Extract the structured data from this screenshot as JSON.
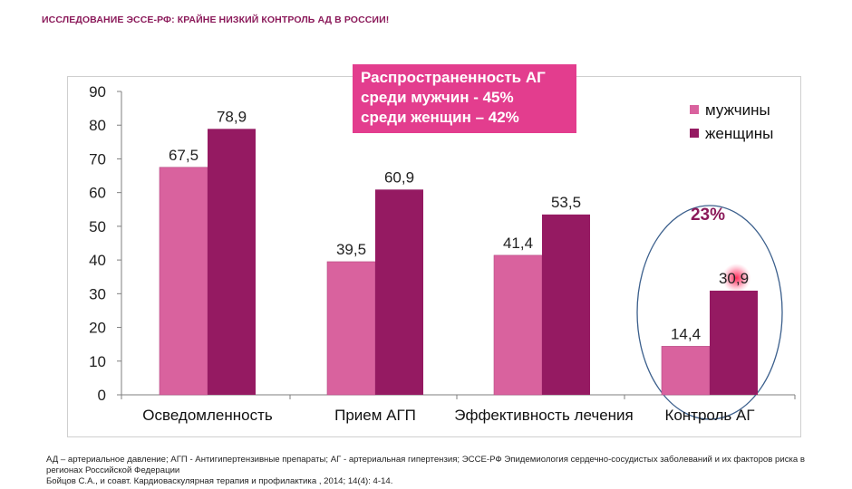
{
  "slide": {
    "title": "ИССЛЕДОВАНИЕ ЭССЕ-РФ: КРАЙНЕ НИЗКИЙ КОНТРОЛЬ АД В РОССИИ!"
  },
  "callout": {
    "lines": [
      "Распространенность АГ",
      "среди мужчин - 45%",
      "среди женщин – 42%"
    ]
  },
  "highlight": {
    "label": "23%",
    "color": "#8b1a5a"
  },
  "colors": {
    "men": "#d9629e",
    "women": "#951a62",
    "callout_bg": "#e33d8e",
    "ellipse": "#3b5f8c"
  },
  "chart_data": {
    "type": "bar",
    "categories": [
      "Осведомленность",
      "Прием  АГП",
      "Эффективность  лечения",
      "Контроль  АГ"
    ],
    "series": [
      {
        "name": "мужчины",
        "values": [
          67.5,
          39.5,
          41.4,
          14.4
        ],
        "labels": [
          "67,5",
          "39,5",
          "41,4",
          "14,4"
        ]
      },
      {
        "name": "женщины",
        "values": [
          78.9,
          60.9,
          53.5,
          30.9
        ],
        "labels": [
          "78,9",
          "60,9",
          "53,5",
          "30,9"
        ]
      }
    ],
    "ylim": [
      0,
      90
    ],
    "yticks": [
      "0",
      "10",
      "20",
      "30",
      "40",
      "50",
      "60",
      "70",
      "80",
      "90"
    ],
    "legend": "top-right",
    "grid": false
  },
  "footnotes": [
    "АД – артериальное давление; АГП - Антигипертензивные препараты; АГ - артериальная гипертензия; ЭССЕ-РФ Эпидемиология сердечно-сосудистых заболеваний и их факторов риска в регионах Российской Федерации",
    "Бойцов С.А., и соавт. Кардиоваскулярная терапия и профилактика , 2014; 14(4): 4-14."
  ]
}
